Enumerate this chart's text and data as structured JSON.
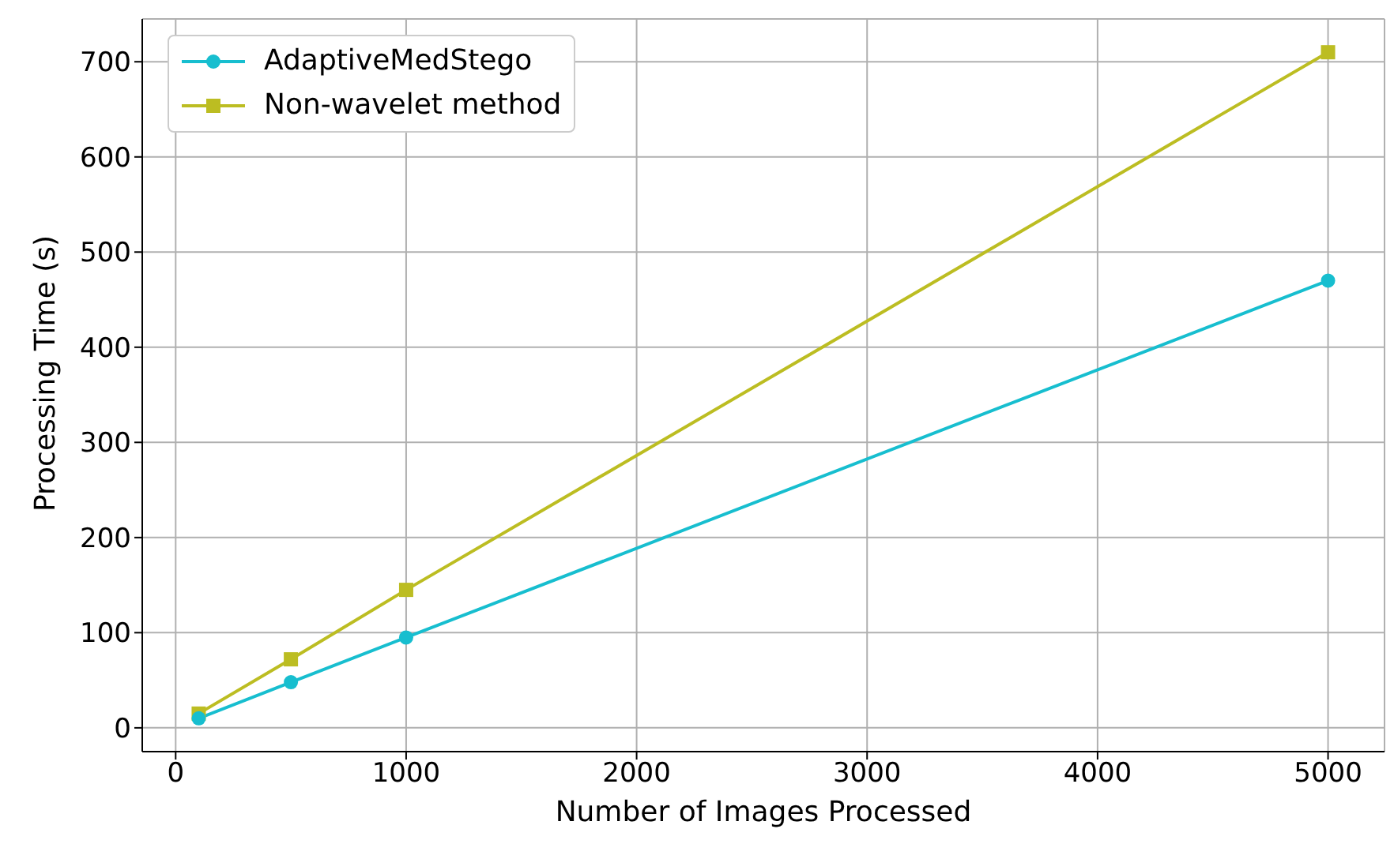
{
  "chart_data": {
    "type": "line",
    "xlabel": "Number of Images Processed",
    "ylabel": "Processing Time (s)",
    "x": [
      100,
      500,
      1000,
      5000
    ],
    "series": [
      {
        "name": "AdaptiveMedStego",
        "color": "#17becf",
        "marker": "circle",
        "values": [
          10,
          48,
          95,
          470
        ]
      },
      {
        "name": "Non-wavelet method",
        "color": "#bcbd22",
        "marker": "square",
        "values": [
          15,
          72,
          145,
          710
        ]
      }
    ],
    "xlim": [
      -145,
      5245
    ],
    "xticks": [
      0,
      1000,
      2000,
      3000,
      4000,
      5000
    ],
    "ylim": [
      -25,
      745
    ],
    "yticks": [
      0,
      100,
      200,
      300,
      400,
      500,
      600,
      700
    ],
    "grid": true,
    "legend": "top left",
    "line_style": "solid"
  }
}
